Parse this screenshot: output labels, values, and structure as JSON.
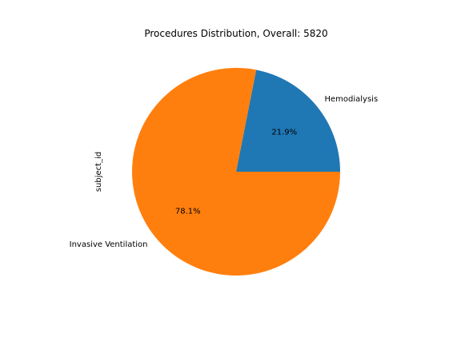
{
  "chart_data": {
    "type": "pie",
    "title": "Procedures Distribution, Overall: 5820",
    "ylabel": "subject_id",
    "slices": [
      {
        "label": "Hemodialysis",
        "percent": 21.9,
        "pct_label": "21.9%",
        "color": "#1f77b4"
      },
      {
        "label": "Invasive Ventilation",
        "percent": 78.1,
        "pct_label": "78.1%",
        "color": "#ff7f0e"
      }
    ],
    "start_angle": 0,
    "direction": "counterclockwise"
  }
}
